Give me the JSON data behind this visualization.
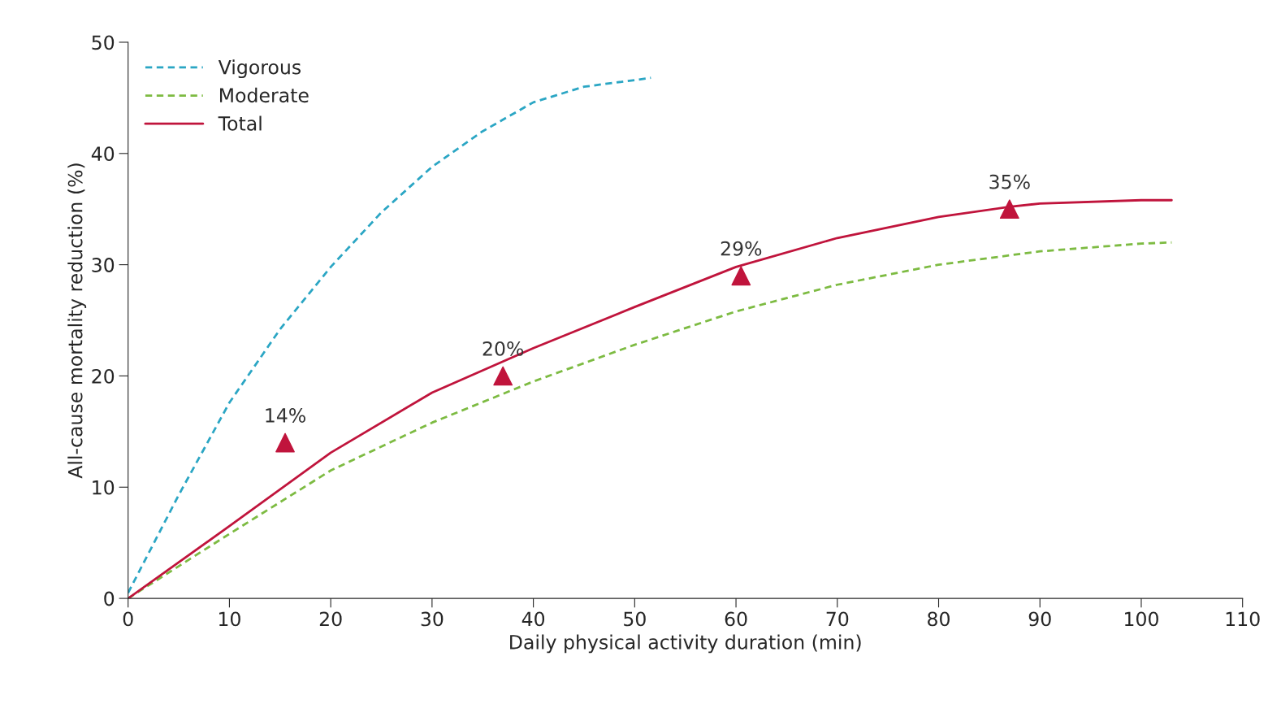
{
  "chart_data": {
    "type": "line",
    "xlabel": "Daily physical activity duration (min)",
    "ylabel": "All-cause mortality reduction (%)",
    "xlim": [
      0,
      110
    ],
    "xticks": [
      0,
      10,
      20,
      30,
      40,
      50,
      60,
      70,
      80,
      90,
      100,
      110
    ],
    "ylim": [
      0,
      50
    ],
    "yticks": [
      0,
      10,
      20,
      30,
      40,
      50
    ],
    "grid": false,
    "legend": "top left",
    "series": [
      {
        "name": "Vigorous",
        "color": "#2ba6c4",
        "line_style": "dashed",
        "x": [
          0,
          5,
          10,
          15,
          20,
          25,
          30,
          35,
          40,
          45,
          50,
          51.6
        ],
        "values": [
          0.5,
          9.3,
          17.6,
          24.2,
          29.8,
          34.7,
          38.8,
          42.0,
          44.6,
          46.0,
          46.6,
          46.8
        ]
      },
      {
        "name": "Moderate",
        "color": "#7dbb42",
        "line_style": "dashed",
        "x": [
          0,
          10,
          20,
          30,
          40,
          50,
          60,
          70,
          80,
          90,
          100,
          103
        ],
        "values": [
          0,
          5.8,
          11.5,
          15.8,
          19.5,
          22.8,
          25.8,
          28.2,
          30.0,
          31.2,
          31.9,
          32.0
        ]
      },
      {
        "name": "Total",
        "color": "#c0143c",
        "line_style": "solid",
        "x": [
          0,
          10,
          20,
          30,
          40,
          50,
          60,
          70,
          80,
          87,
          90,
          100,
          103
        ],
        "values": [
          0,
          6.5,
          13.1,
          18.5,
          22.5,
          26.2,
          29.8,
          32.4,
          34.3,
          35.2,
          35.5,
          35.8,
          35.8
        ]
      },
      {
        "type": "scatter",
        "color": "#c0143c",
        "marker": "triangle",
        "x": [
          15.5,
          37,
          60.5,
          87
        ],
        "values": [
          14,
          20,
          29,
          35
        ],
        "value_labels": [
          "14%",
          "20%",
          "29%",
          "35%"
        ]
      }
    ]
  }
}
